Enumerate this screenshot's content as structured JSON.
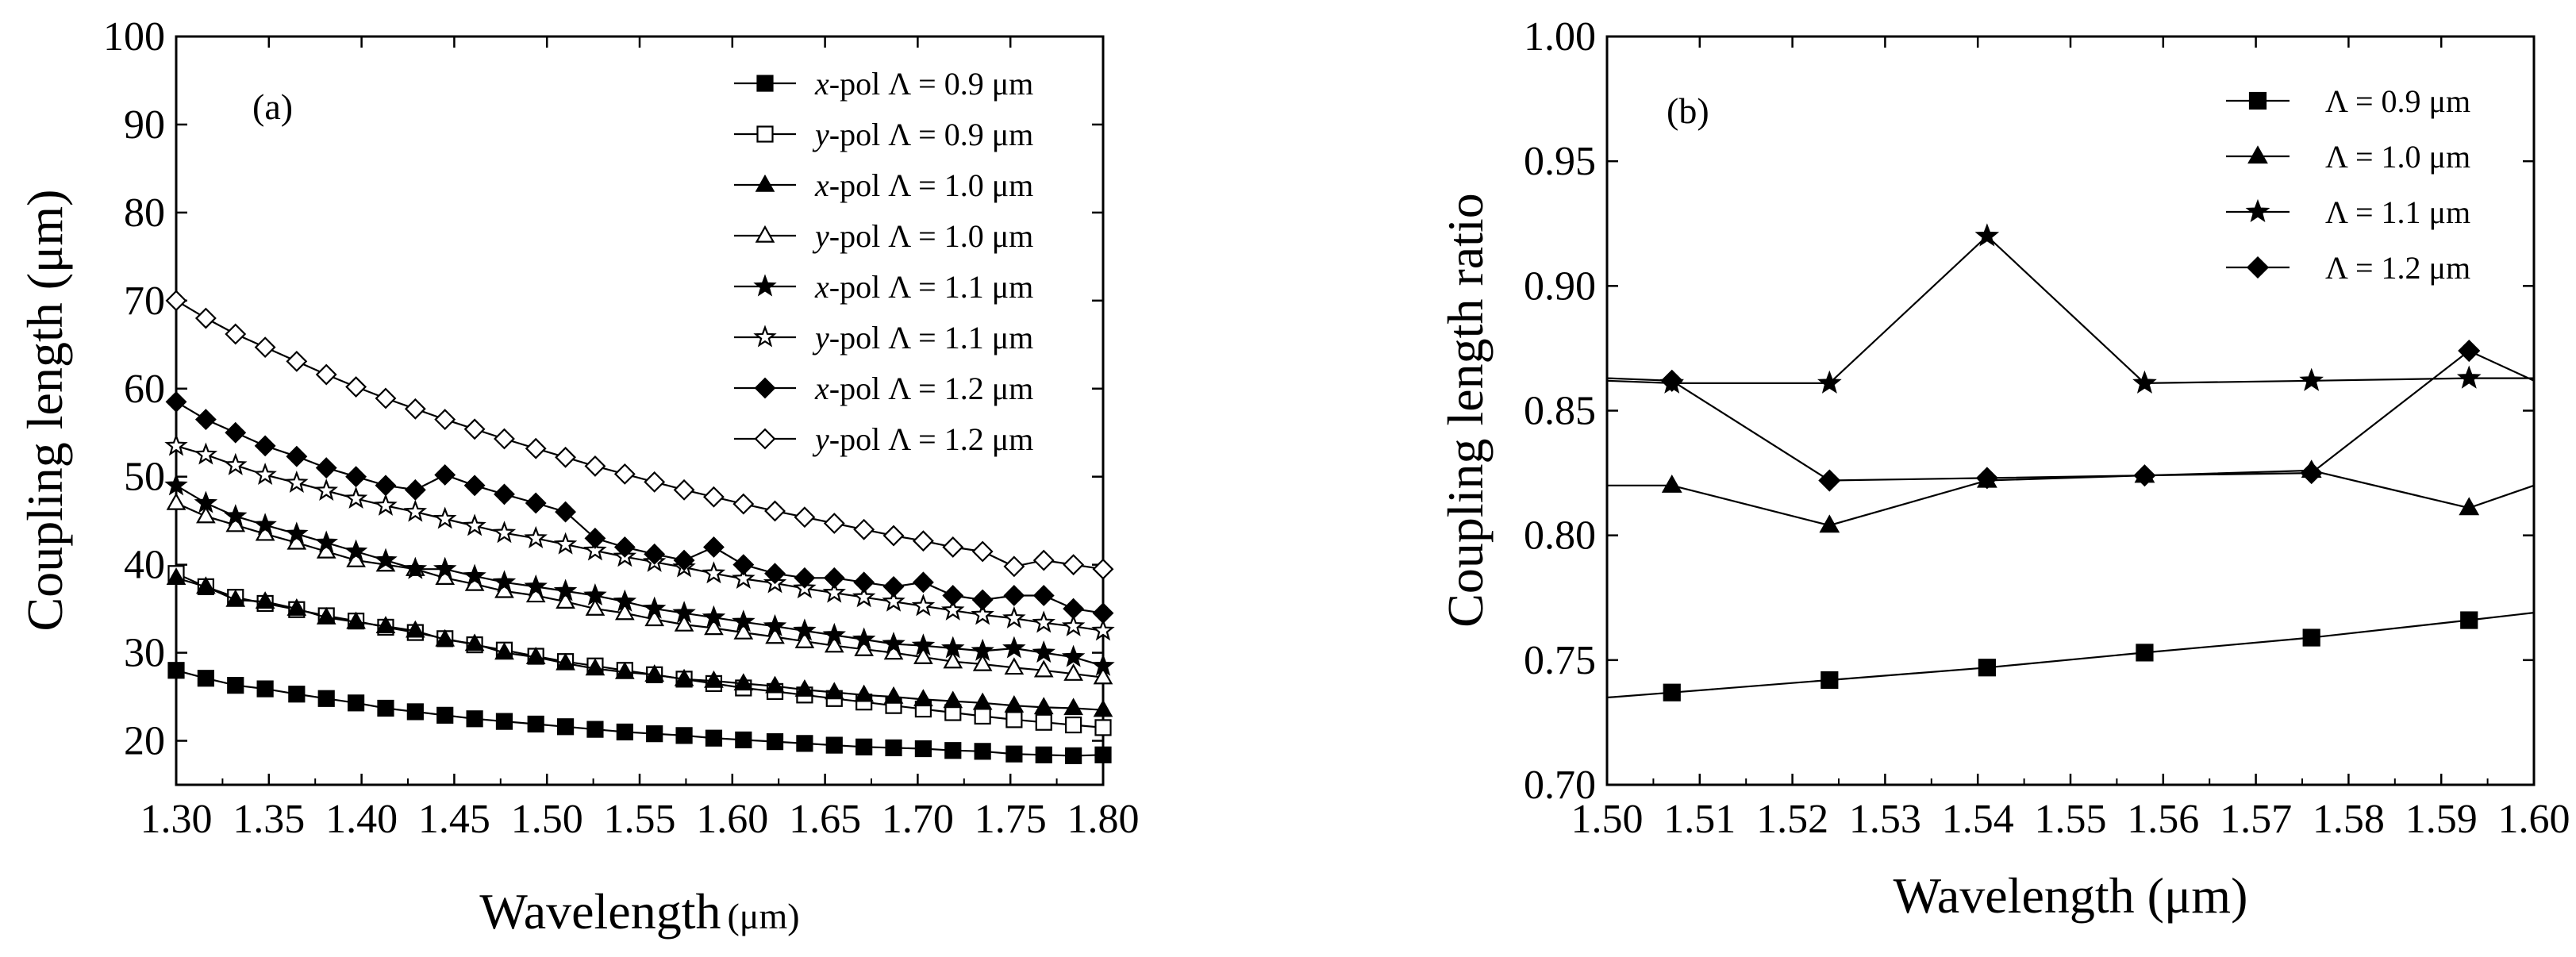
{
  "chart_data": [
    {
      "panel_label": "(a)",
      "type": "line",
      "xlabel": "Wavelength",
      "xlabel_unit": "(μm)",
      "ylabel": "Coupling length (μm)",
      "xlim": [
        1.3,
        1.8
      ],
      "ylim": [
        15,
        100
      ],
      "xticks": [
        "1.30",
        "1.35",
        "1.40",
        "1.45",
        "1.50",
        "1.55",
        "1.60",
        "1.65",
        "1.70",
        "1.75",
        "1.80"
      ],
      "yticks": [
        "20",
        "30",
        "40",
        "50",
        "60",
        "70",
        "80",
        "90",
        "100"
      ],
      "legend_position": "top-right",
      "x": [
        1.3,
        1.316,
        1.332,
        1.348,
        1.365,
        1.381,
        1.397,
        1.413,
        1.429,
        1.445,
        1.461,
        1.477,
        1.494,
        1.51,
        1.526,
        1.542,
        1.558,
        1.574,
        1.59,
        1.606,
        1.623,
        1.639,
        1.655,
        1.671,
        1.687,
        1.703,
        1.719,
        1.735,
        1.752,
        1.768,
        1.784,
        1.8
      ],
      "series": [
        {
          "name": "x-pol Λ = 0.9 μm",
          "pol": "x",
          "period": "Λ = 0.9 μm",
          "marker": "square",
          "filled": true,
          "values": [
            28.0,
            27.1,
            26.3,
            25.9,
            25.3,
            24.8,
            24.3,
            23.7,
            23.3,
            22.9,
            22.5,
            22.2,
            21.9,
            21.6,
            21.3,
            21.0,
            20.8,
            20.6,
            20.3,
            20.1,
            19.9,
            19.7,
            19.5,
            19.3,
            19.2,
            19.1,
            18.9,
            18.8,
            18.5,
            18.4,
            18.3,
            18.4
          ]
        },
        {
          "name": "y-pol Λ = 0.9 μm",
          "pol": "y",
          "period": "Λ = 0.9 μm",
          "marker": "square",
          "filled": false,
          "values": [
            39.0,
            37.5,
            36.3,
            35.6,
            34.9,
            34.2,
            33.6,
            32.9,
            32.3,
            31.6,
            30.9,
            30.3,
            29.6,
            29.0,
            28.5,
            28.0,
            27.5,
            27.0,
            26.5,
            26.0,
            25.6,
            25.2,
            24.8,
            24.4,
            24.0,
            23.6,
            23.2,
            22.8,
            22.4,
            22.1,
            21.8,
            21.5
          ]
        },
        {
          "name": "x-pol Λ = 1.0 μm",
          "pol": "x",
          "period": "Λ = 1.0 μm",
          "marker": "triangle",
          "filled": true,
          "values": [
            38.5,
            37.5,
            36.0,
            35.8,
            35.0,
            34.0,
            33.5,
            33.0,
            32.5,
            31.5,
            31.0,
            30.0,
            29.5,
            28.8,
            28.2,
            27.8,
            27.5,
            27.0,
            26.8,
            26.5,
            26.2,
            25.8,
            25.5,
            25.2,
            25.0,
            24.7,
            24.5,
            24.3,
            24.0,
            23.8,
            23.7,
            23.5
          ]
        },
        {
          "name": "y-pol Λ = 1.0 μm",
          "pol": "y",
          "period": "Λ = 1.0 μm",
          "marker": "triangle",
          "filled": false,
          "values": [
            47.0,
            45.5,
            44.5,
            43.5,
            42.5,
            41.5,
            40.5,
            40.0,
            39.5,
            38.5,
            37.8,
            37.0,
            36.5,
            35.8,
            35.0,
            34.5,
            33.8,
            33.2,
            32.8,
            32.3,
            31.8,
            31.3,
            30.8,
            30.4,
            30.0,
            29.5,
            29.0,
            28.7,
            28.3,
            28.0,
            27.6,
            27.2
          ]
        },
        {
          "name": "x-pol Λ = 1.1 μm",
          "pol": "x",
          "period": "Λ = 1.1 μm",
          "marker": "star",
          "filled": true,
          "values": [
            49.0,
            47.0,
            45.5,
            44.5,
            43.5,
            42.5,
            41.5,
            40.5,
            39.5,
            39.5,
            38.7,
            38.0,
            37.5,
            37.0,
            36.5,
            35.8,
            35.0,
            34.5,
            34.0,
            33.5,
            33.0,
            32.5,
            32.0,
            31.5,
            31.0,
            30.8,
            30.5,
            30.2,
            30.5,
            30.0,
            29.5,
            28.5
          ]
        },
        {
          "name": "y-pol Λ = 1.1 μm",
          "pol": "y",
          "period": "Λ = 1.1 μm",
          "marker": "star",
          "filled": false,
          "values": [
            53.5,
            52.5,
            51.3,
            50.2,
            49.3,
            48.4,
            47.5,
            46.7,
            46.0,
            45.2,
            44.4,
            43.6,
            43.0,
            42.3,
            41.6,
            40.9,
            40.3,
            39.7,
            39.0,
            38.4,
            37.9,
            37.3,
            36.8,
            36.3,
            35.8,
            35.3,
            34.8,
            34.3,
            33.9,
            33.4,
            33.0,
            32.5
          ]
        },
        {
          "name": "x-pol Λ = 1.2 μm",
          "pol": "x",
          "period": "Λ = 1.2 μm",
          "marker": "diamond",
          "filled": true,
          "values": [
            58.5,
            56.5,
            55.0,
            53.5,
            52.3,
            51.0,
            50.0,
            49.0,
            48.5,
            50.2,
            49.0,
            48.0,
            47.0,
            46.0,
            43.0,
            42.0,
            41.2,
            40.5,
            42.0,
            40.0,
            39.0,
            38.5,
            38.5,
            38.0,
            37.5,
            38.0,
            36.5,
            36.0,
            36.5,
            36.5,
            35.0,
            34.5
          ]
        },
        {
          "name": "y-pol Λ = 1.2 μm",
          "pol": "y",
          "period": "Λ = 1.2 μm",
          "marker": "diamond",
          "filled": false,
          "values": [
            70.0,
            68.0,
            66.2,
            64.7,
            63.1,
            61.6,
            60.2,
            58.9,
            57.7,
            56.5,
            55.4,
            54.3,
            53.2,
            52.2,
            51.2,
            50.3,
            49.4,
            48.5,
            47.7,
            46.9,
            46.1,
            45.4,
            44.7,
            44.0,
            43.3,
            42.7,
            42.0,
            41.5,
            39.8,
            40.5,
            40.0,
            39.5
          ]
        }
      ]
    },
    {
      "panel_label": "(b)",
      "type": "line",
      "xlabel": "Wavelength (μm)",
      "ylabel": "Coupling length ratio",
      "xlim": [
        1.5,
        1.6
      ],
      "ylim": [
        0.7,
        1.0
      ],
      "xticks": [
        "1.50",
        "1.51",
        "1.52",
        "1.53",
        "1.54",
        "1.55",
        "1.56",
        "1.57",
        "1.58",
        "1.59",
        "1.60"
      ],
      "yticks": [
        "0.70",
        "0.75",
        "0.80",
        "0.85",
        "0.90",
        "0.95",
        "1.00"
      ],
      "legend_position": "top-right",
      "x": [
        1.5,
        1.507,
        1.524,
        1.541,
        1.558,
        1.576,
        1.593,
        1.6
      ],
      "series": [
        {
          "name": "Λ = 0.9 μm",
          "marker": "square",
          "filled": true,
          "values": [
            0.735,
            0.737,
            0.742,
            0.747,
            0.753,
            0.759,
            0.766,
            0.769
          ]
        },
        {
          "name": "Λ = 1.0 μm",
          "marker": "triangle",
          "filled": true,
          "values": [
            0.82,
            0.82,
            0.804,
            0.822,
            0.824,
            0.826,
            0.811,
            0.82
          ]
        },
        {
          "name": "Λ = 1.1 μm",
          "marker": "star",
          "filled": true,
          "values": [
            0.862,
            0.861,
            0.861,
            0.92,
            0.861,
            0.862,
            0.863,
            0.863
          ]
        },
        {
          "name": "Λ = 1.2 μm",
          "marker": "diamond",
          "filled": true,
          "values": [
            0.863,
            0.862,
            0.822,
            0.823,
            0.824,
            0.825,
            0.874,
            0.862
          ]
        }
      ]
    }
  ]
}
